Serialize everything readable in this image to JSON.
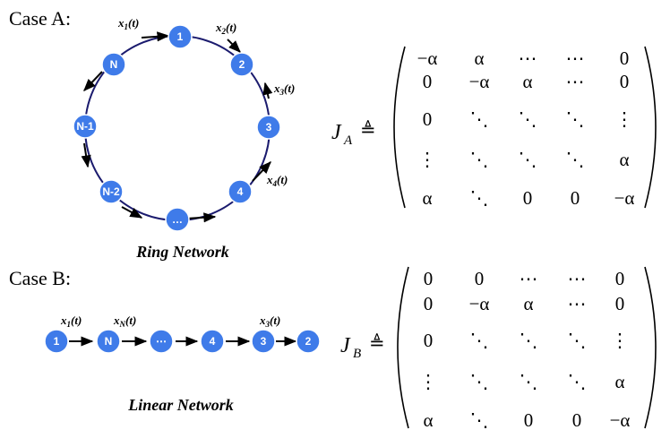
{
  "colors": {
    "node_fill": "#3f7be9",
    "node_stroke": "#ffffff",
    "ring": "#1b1b6e",
    "arrow": "#000000"
  },
  "case_a": {
    "label": "Case A:",
    "caption": "Ring Network",
    "nodes": [
      "1",
      "2",
      "3",
      "4",
      "…",
      "N-2",
      "N-1",
      "N"
    ],
    "vars": [
      {
        "base": "x",
        "sub": "1",
        "arg": "(t)"
      },
      {
        "base": "x",
        "sub": "2",
        "arg": "(t)"
      },
      {
        "base": "x",
        "sub": "3",
        "arg": "(t)"
      },
      {
        "base": "x",
        "sub": "4",
        "arg": "(t)"
      }
    ],
    "matrix": {
      "name": "J",
      "sub": "A",
      "def": "≜",
      "rows": [
        [
          "−α",
          "α",
          "⋯",
          "⋯",
          "0"
        ],
        [
          "0",
          "−α",
          "α",
          "⋯",
          "0"
        ],
        [
          "0",
          "⋱",
          "⋱",
          "⋱",
          "⋮"
        ],
        [
          "⋮",
          "⋱",
          "⋱",
          "⋱",
          "α"
        ],
        [
          "α",
          "⋱",
          "0",
          "0",
          "−α"
        ]
      ]
    }
  },
  "case_b": {
    "label": "Case B:",
    "caption": "Linear Network",
    "nodes": [
      "1",
      "N",
      "⋯",
      "4",
      "3",
      "2"
    ],
    "vars": [
      {
        "base": "x",
        "sub": "1",
        "arg": "(t)"
      },
      {
        "base": "x",
        "sub": "N",
        "arg": "(t)"
      },
      {
        "base": "x",
        "sub": "3",
        "arg": "(t)"
      }
    ],
    "matrix": {
      "name": "J",
      "sub": "B",
      "def": "≜",
      "rows": [
        [
          "0",
          "0",
          "⋯",
          "⋯",
          "0"
        ],
        [
          "0",
          "−α",
          "α",
          "⋯",
          "0"
        ],
        [
          "0",
          "⋱",
          "⋱",
          "⋱",
          "⋮"
        ],
        [
          "⋮",
          "⋱",
          "⋱",
          "⋱",
          "α"
        ],
        [
          "α",
          "⋱",
          "0",
          "0",
          "−α"
        ]
      ]
    }
  }
}
